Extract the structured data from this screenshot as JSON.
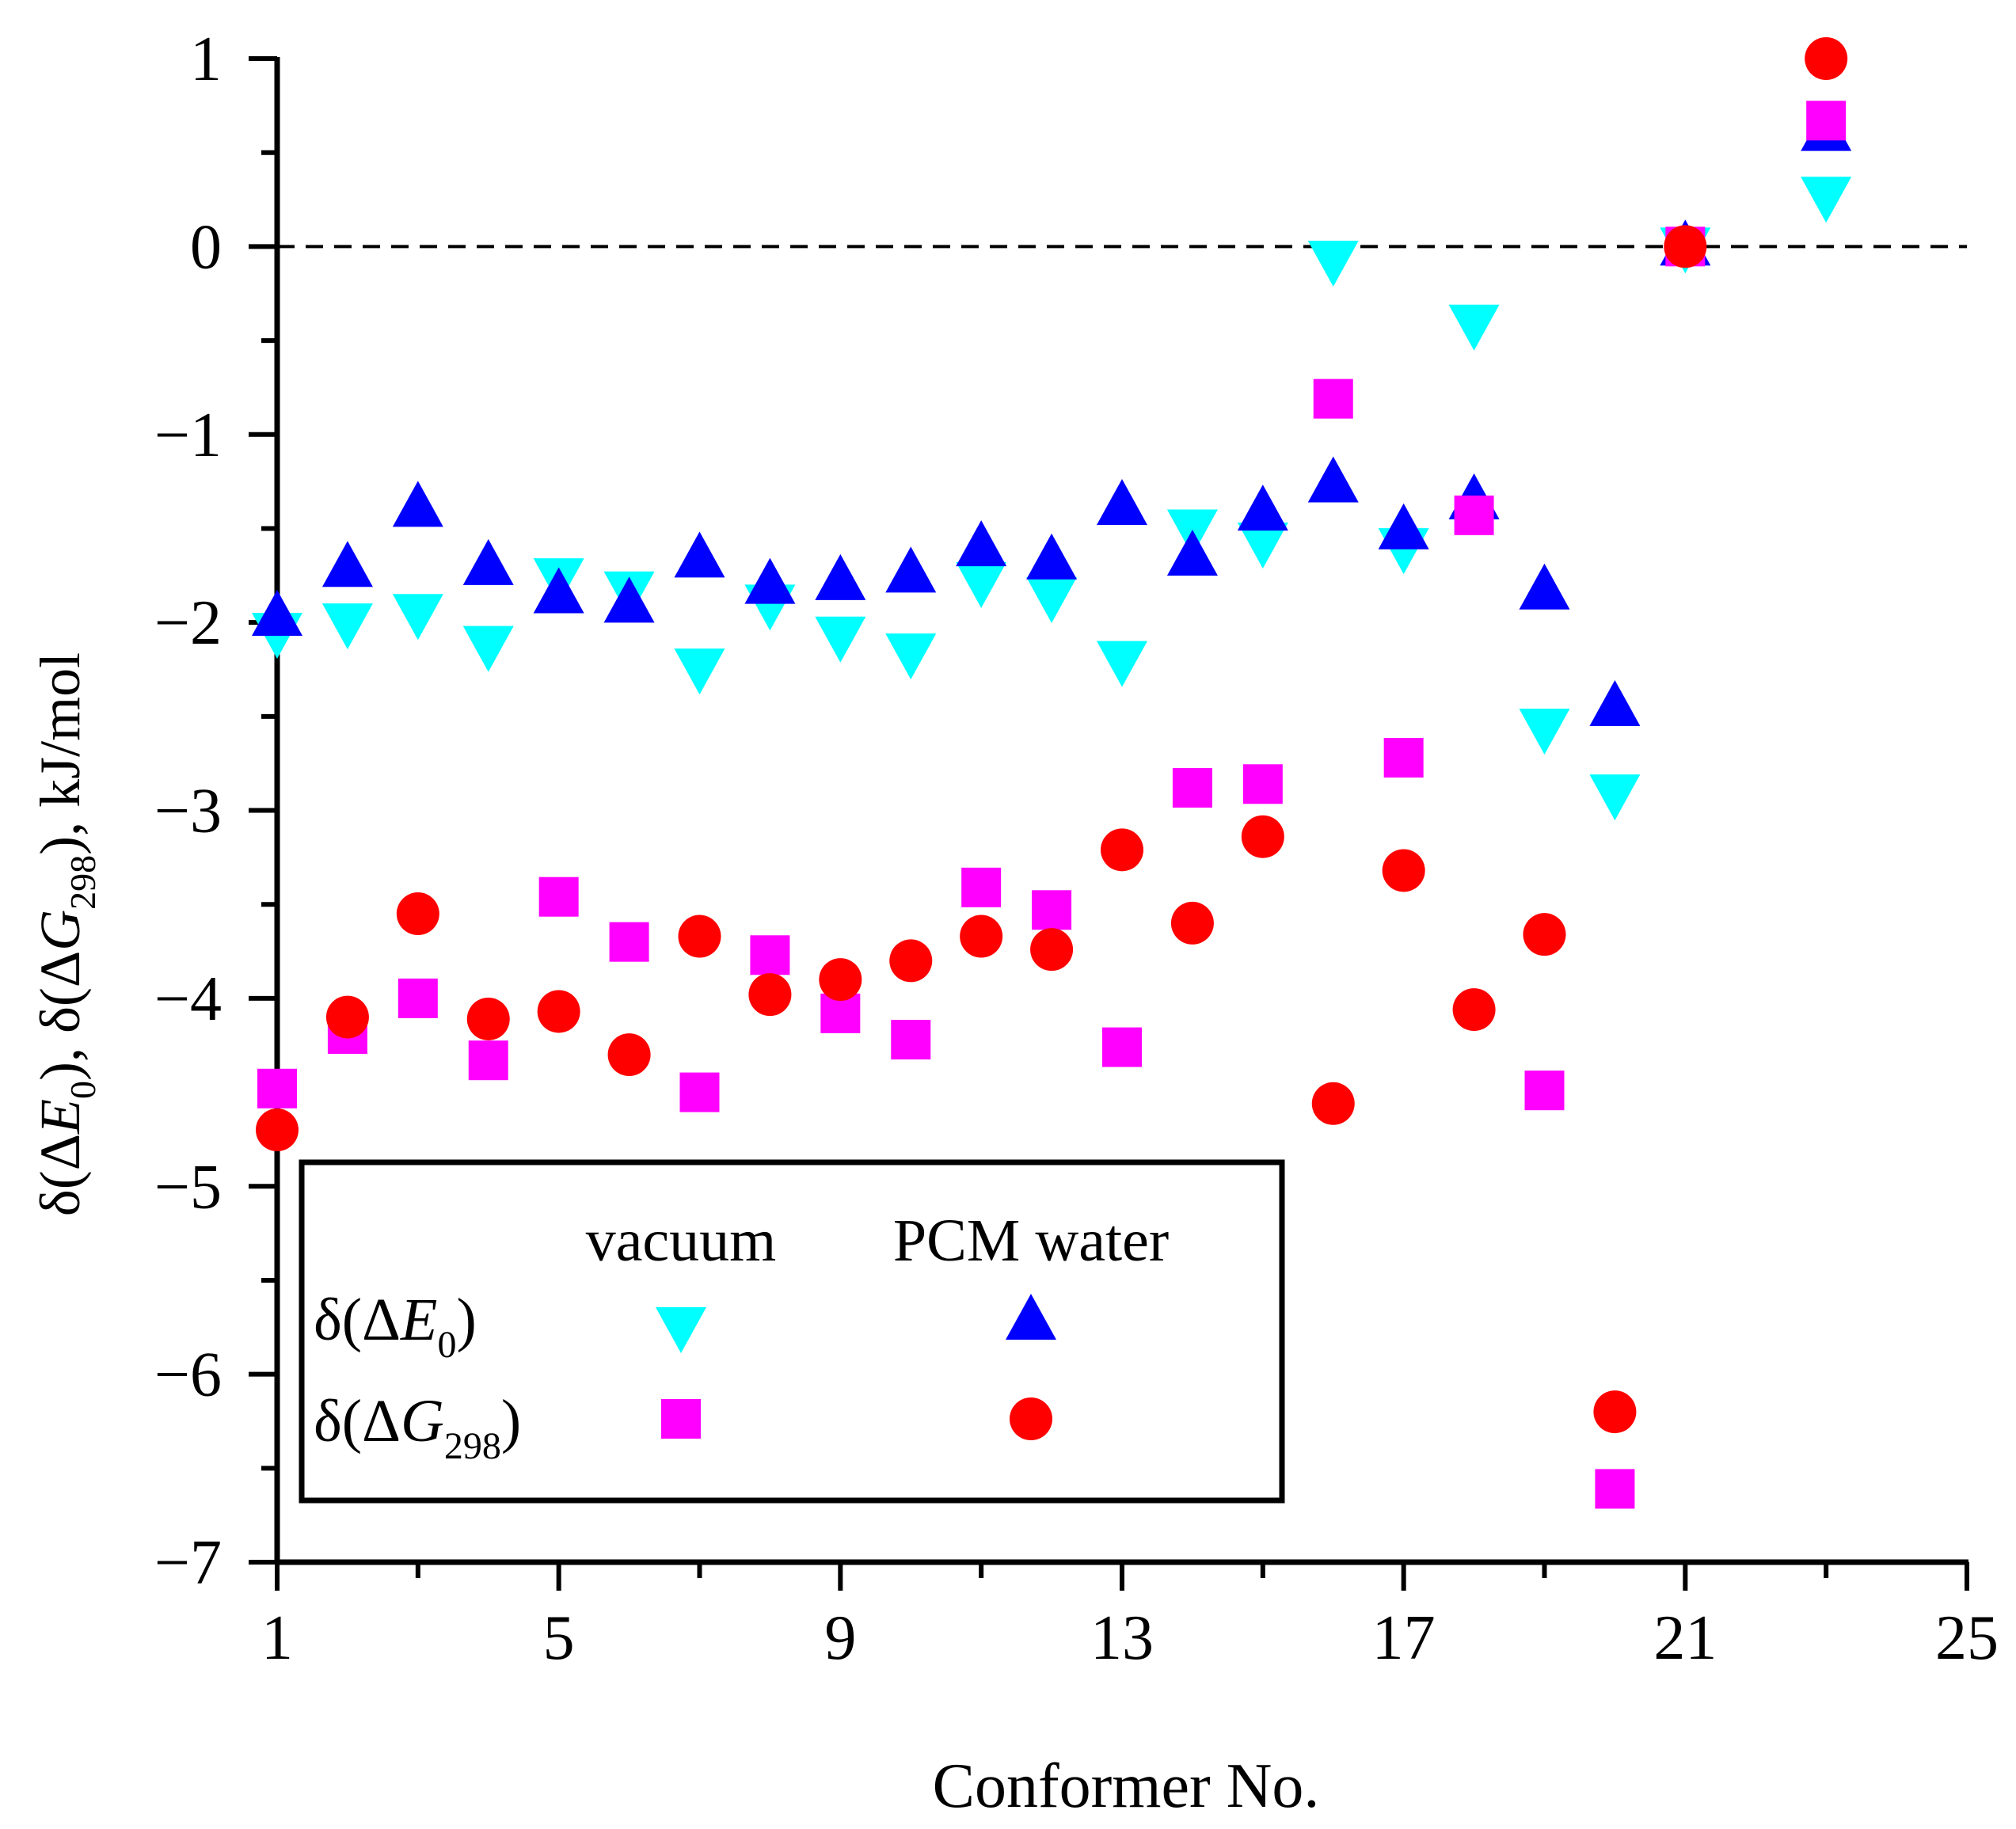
{
  "chart_data": {
    "type": "scatter",
    "xlabel": "Conformer No.",
    "ylabel": {
      "prefix": "δ(Δ",
      "e_sym": "E",
      "e_sub": "0",
      "mid": "), δ(Δ",
      "g_sym": "G",
      "g_sub": "298",
      "suffix": "), kJ/mol"
    },
    "xlim": [
      1,
      25
    ],
    "ylim": [
      -7,
      1
    ],
    "x_ticks": [
      1,
      5,
      9,
      13,
      17,
      21,
      25
    ],
    "x_tick_labels": [
      "1",
      "5",
      "9",
      "13",
      "17",
      "21",
      "25"
    ],
    "x_minor_ticks": [
      3,
      7,
      11,
      15,
      19,
      23
    ],
    "y_ticks": [
      1,
      0,
      -1,
      -2,
      -3,
      -4,
      -5,
      -6,
      -7
    ],
    "y_tick_labels": [
      "1",
      "0",
      "−1",
      "−2",
      "−3",
      "−4",
      "−5",
      "−6",
      "−7"
    ],
    "y_minor_ticks": [
      0.5,
      -0.5,
      -1.5,
      -2.5,
      -3.5,
      -4.5,
      -5.5,
      -6.5
    ],
    "reference_line": {
      "y": 0,
      "style": "dashed"
    },
    "legend": {
      "placement": "bottom-left",
      "col_vacuum": "vacuum",
      "col_pcm": "PCM water",
      "row_e": {
        "prefix": "δ(Δ",
        "sym": "E",
        "sub": "0",
        "suffix": ")"
      },
      "row_g": {
        "prefix": "δ(Δ",
        "sym": "G",
        "sub": "298",
        "suffix": ")"
      }
    },
    "series": [
      {
        "name": "δ(ΔE0) vacuum",
        "marker": "triangle-down",
        "color": "#00FFFF",
        "x": [
          1,
          2,
          3,
          4,
          5,
          6,
          7,
          8,
          9,
          10,
          11,
          12,
          13,
          14,
          15,
          16,
          17,
          18,
          19,
          20,
          21,
          23
        ],
        "y": [
          -2.05,
          -2.0,
          -1.95,
          -2.12,
          -1.76,
          -1.83,
          -2.24,
          -1.9,
          -2.07,
          -2.16,
          -1.78,
          -1.86,
          -2.2,
          -1.5,
          -1.57,
          -0.07,
          -1.6,
          -0.41,
          -2.56,
          -2.91,
          0.0,
          0.27
        ]
      },
      {
        "name": "δ(ΔE0) PCM water",
        "marker": "triangle-up",
        "color": "#0000FF",
        "x": [
          1,
          2,
          3,
          4,
          5,
          6,
          7,
          8,
          9,
          10,
          11,
          12,
          13,
          14,
          15,
          16,
          17,
          18,
          19,
          20,
          21,
          23
        ],
        "y": [
          -1.97,
          -1.71,
          -1.39,
          -1.7,
          -1.85,
          -1.9,
          -1.66,
          -1.8,
          -1.78,
          -1.74,
          -1.6,
          -1.67,
          -1.38,
          -1.65,
          -1.41,
          -1.26,
          -1.51,
          -1.35,
          -1.83,
          -2.45,
          0.0,
          0.61
        ]
      },
      {
        "name": "δ(ΔG298) vacuum",
        "marker": "square",
        "color": "#FF00FF",
        "x": [
          1,
          2,
          3,
          4,
          5,
          6,
          7,
          8,
          9,
          10,
          11,
          12,
          13,
          14,
          15,
          16,
          17,
          18,
          19,
          20,
          21,
          23
        ],
        "y": [
          -4.48,
          -4.19,
          -4.0,
          -4.33,
          -3.46,
          -3.7,
          -4.5,
          -3.77,
          -4.08,
          -4.22,
          -3.41,
          -3.53,
          -4.26,
          -2.88,
          -2.86,
          -0.81,
          -2.72,
          -1.43,
          -4.49,
          -6.61,
          0.0,
          0.67
        ]
      },
      {
        "name": "δ(ΔG298) PCM water",
        "marker": "circle",
        "color": "#FF0000",
        "x": [
          1,
          2,
          3,
          4,
          5,
          6,
          7,
          8,
          9,
          10,
          11,
          12,
          13,
          14,
          15,
          16,
          17,
          18,
          19,
          20,
          21,
          23
        ],
        "y": [
          -4.7,
          -4.1,
          -3.55,
          -4.11,
          -4.07,
          -4.3,
          -3.67,
          -3.98,
          -3.9,
          -3.8,
          -3.67,
          -3.74,
          -3.21,
          -3.6,
          -3.14,
          -4.56,
          -3.32,
          -4.06,
          -3.66,
          -6.2,
          0.0,
          1.0
        ]
      }
    ]
  }
}
